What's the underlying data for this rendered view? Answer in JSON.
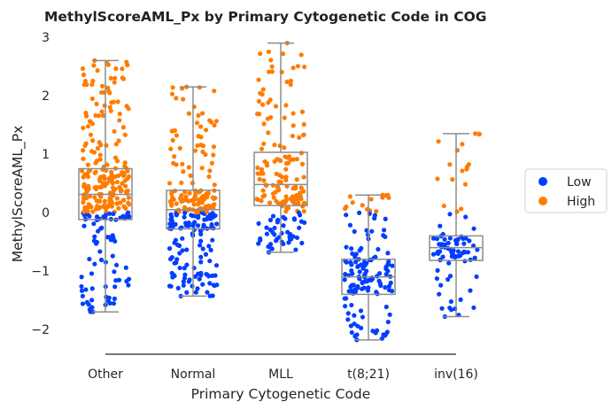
{
  "chart_data": {
    "type": "box-strip",
    "title": "MethylScoreAML_Px by Primary Cytogenetic Code in COG",
    "xlabel": "Primary Cytogenetic Code",
    "ylabel": "MethylScoreAML_Px",
    "ylim": [
      -2.45,
      3.05
    ],
    "yticks": [
      -2,
      -1,
      0,
      1,
      2,
      3
    ],
    "ytick_labels": [
      "−2",
      "−1",
      "0",
      "1",
      "2",
      "3"
    ],
    "grid": false,
    "legend_position": "right",
    "categories": [
      "Other",
      "Normal",
      "MLL",
      "t(8;21)",
      "inv(16)"
    ],
    "boxes": [
      {
        "category": "Other",
        "whisker_low": -1.7,
        "q1": -0.12,
        "median": 0.31,
        "q3": 0.75,
        "whisker_high": 2.6
      },
      {
        "category": "Normal",
        "whisker_low": -1.43,
        "q1": -0.28,
        "median": 0.05,
        "q3": 0.38,
        "whisker_high": 2.15
      },
      {
        "category": "MLL",
        "whisker_low": -0.68,
        "q1": 0.12,
        "median": 0.48,
        "q3": 1.03,
        "whisker_high": 2.9
      },
      {
        "category": "t(8;21)",
        "whisker_low": -2.18,
        "q1": -1.4,
        "median": -1.1,
        "q3": -0.8,
        "whisker_high": 0.3
      },
      {
        "category": "inv(16)",
        "whisker_low": -1.78,
        "q1": -0.82,
        "median": -0.6,
        "q3": -0.4,
        "whisker_high": 1.35
      }
    ],
    "threshold": 0,
    "series": [
      {
        "name": "Low",
        "color": "#023eff"
      },
      {
        "name": "High",
        "color": "#ff7c00"
      }
    ],
    "strip": [
      {
        "category": "Other",
        "n": 280,
        "seed": 11
      },
      {
        "category": "Normal",
        "n": 250,
        "seed": 23
      },
      {
        "category": "MLL",
        "n": 180,
        "seed": 37
      },
      {
        "category": "t(8;21)",
        "n": 140,
        "seed": 51
      },
      {
        "category": "inv(16)",
        "n": 90,
        "seed": 73
      }
    ],
    "colors": {
      "box_edge": "#8c8c8c",
      "axis": "#262626"
    }
  }
}
